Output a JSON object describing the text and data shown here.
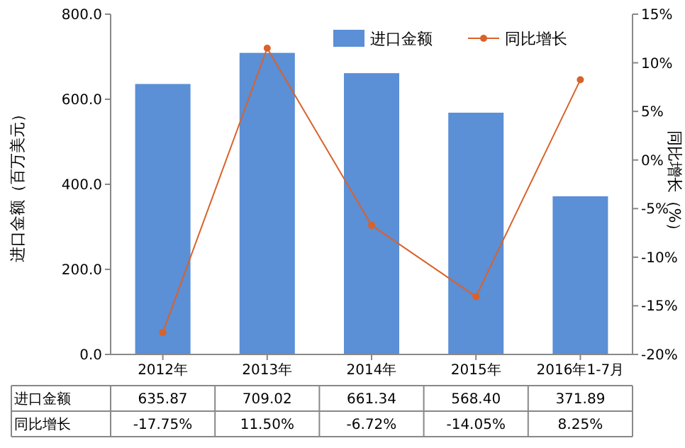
{
  "chart_data": {
    "type": "bar",
    "categories": [
      "2012年",
      "2013年",
      "2014年",
      "2015年",
      "2016年1-7月"
    ],
    "ylabel": "进口金额（百万美元）",
    "y2label": "同比增长（%）",
    "ylim": [
      0,
      800
    ],
    "yticks": [
      {
        "value": 0,
        "label": "0.0"
      },
      {
        "value": 200,
        "label": "200.0"
      },
      {
        "value": 400,
        "label": "400.0"
      },
      {
        "value": 600,
        "label": "600.0"
      },
      {
        "value": 800,
        "label": "800.0"
      }
    ],
    "y2lim": [
      -20,
      15
    ],
    "y2ticks": [
      {
        "value": -20,
        "label": "-20%"
      },
      {
        "value": -15,
        "label": "-15%"
      },
      {
        "value": -10,
        "label": "-10%"
      },
      {
        "value": -5,
        "label": "-5%"
      },
      {
        "value": 0,
        "label": "0%"
      },
      {
        "value": 5,
        "label": "5%"
      },
      {
        "value": 10,
        "label": "10%"
      },
      {
        "value": 15,
        "label": "15%"
      }
    ],
    "legend": "top right",
    "marker": "circle",
    "series": [
      {
        "name": "进口金额",
        "color": "#5b8fd6",
        "values": [
          635.87,
          709.02,
          661.34,
          568.4,
          371.89
        ],
        "value_labels": [
          "635.87",
          "709.02",
          "661.34",
          "568.40",
          "371.89"
        ]
      },
      {
        "name": "同比增长",
        "type": "line",
        "axis": "y2",
        "color": "#d9622b",
        "values": [
          -17.75,
          11.5,
          -6.72,
          -14.05,
          8.25
        ],
        "value_labels": [
          "-17.75%",
          "11.50%",
          "-6.72%",
          "-14.05%",
          "8.25%"
        ]
      }
    ]
  }
}
